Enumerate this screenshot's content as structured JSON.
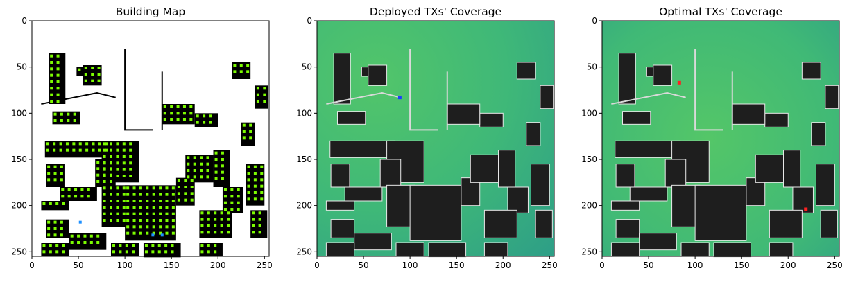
{
  "chart_data": [
    {
      "type": "heatmap",
      "title": "Building Map",
      "xlim": [
        0,
        255
      ],
      "ylim": [
        255,
        0
      ],
      "xticks": [
        0,
        50,
        100,
        150,
        200,
        250
      ],
      "yticks": [
        0,
        50,
        100,
        150,
        200,
        250
      ],
      "legend": "none",
      "colors": {
        "background": "#ffffff",
        "building": "#000000",
        "candidate_site": "#7cfc00",
        "deployed_site": "#1e90ff"
      },
      "candidate_markers": "green squares on building rooftops",
      "deployed_tx": [
        [
          52,
          218
        ],
        [
          130,
          232
        ],
        [
          140,
          232
        ]
      ]
    },
    {
      "type": "heatmap",
      "title": "Deployed TXs' Coverage",
      "xlim": [
        0,
        255
      ],
      "ylim": [
        255,
        0
      ],
      "xticks": [
        0,
        50,
        100,
        150,
        200,
        250
      ],
      "yticks": [
        0,
        50,
        100,
        150,
        200,
        250
      ],
      "colors": {
        "high": "#4cc46a",
        "mid": "#3fb878",
        "low": "#2a9a8a",
        "building": "#1e1e1e",
        "tx": "#1a3cff"
      },
      "tx": [
        [
          89,
          83
        ]
      ]
    },
    {
      "type": "heatmap",
      "title": "Optimal TXs' Coverage",
      "xlim": [
        0,
        255
      ],
      "ylim": [
        255,
        0
      ],
      "xticks": [
        0,
        50,
        100,
        150,
        200,
        250
      ],
      "yticks": [
        0,
        50,
        100,
        150,
        200,
        250
      ],
      "colors": {
        "high": "#4cc46a",
        "mid": "#3fb878",
        "low": "#2a9a8a",
        "building": "#1e1e1e",
        "tx": "#ff2020"
      },
      "tx": [
        [
          83,
          67
        ],
        [
          219,
          204
        ]
      ]
    }
  ]
}
